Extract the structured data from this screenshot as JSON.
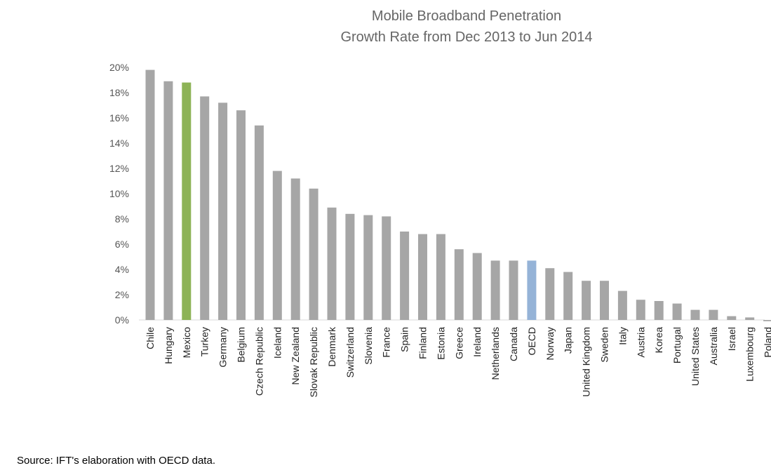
{
  "chart_data": {
    "type": "bar",
    "title": "Mobile Broadband Penetration",
    "subtitle": "Growth Rate from Dec 2013 to Jun 2014",
    "ylim": [
      0,
      20
    ],
    "yticks": [
      "20%",
      "18%",
      "16%",
      "14%",
      "12%",
      "10%",
      "8%",
      "6%",
      "4%",
      "2%",
      "0%"
    ],
    "ytick_values": [
      20,
      18,
      16,
      14,
      12,
      10,
      8,
      6,
      4,
      2,
      0
    ],
    "grid": false,
    "categories": [
      "Chile",
      "Hungary",
      "Mexico",
      "Turkey",
      "Germany",
      "Belgium",
      "Czech Republic",
      "Iceland",
      "New Zealand",
      "Slovak Republic",
      "Denmark",
      "Switzerland",
      "Slovenia",
      "France",
      "Spain",
      "Finland",
      "Estonia",
      "Greece",
      "Ireland",
      "Netherlands",
      "Canada",
      "OECD",
      "Norway",
      "Japan",
      "United Kingdom",
      "Sweden",
      "Italy",
      "Austria",
      "Korea",
      "Portugal",
      "United States",
      "Australia",
      "Israel",
      "Luxembourg",
      "Poland"
    ],
    "values": [
      19.8,
      18.9,
      18.8,
      17.7,
      17.2,
      16.6,
      15.4,
      11.8,
      11.2,
      10.4,
      8.9,
      8.4,
      8.3,
      8.2,
      7.0,
      6.8,
      6.8,
      5.6,
      5.3,
      4.7,
      4.7,
      4.7,
      4.1,
      3.8,
      3.1,
      3.1,
      2.3,
      1.6,
      1.5,
      1.3,
      0.8,
      0.8,
      0.3,
      0.2,
      -0.1
    ],
    "colors": {
      "default": "#a6a6a6",
      "Mexico": "#8db356",
      "OECD": "#95b3d7"
    }
  },
  "footer": {
    "source": "Source: IFT's elaboration with OECD data."
  }
}
